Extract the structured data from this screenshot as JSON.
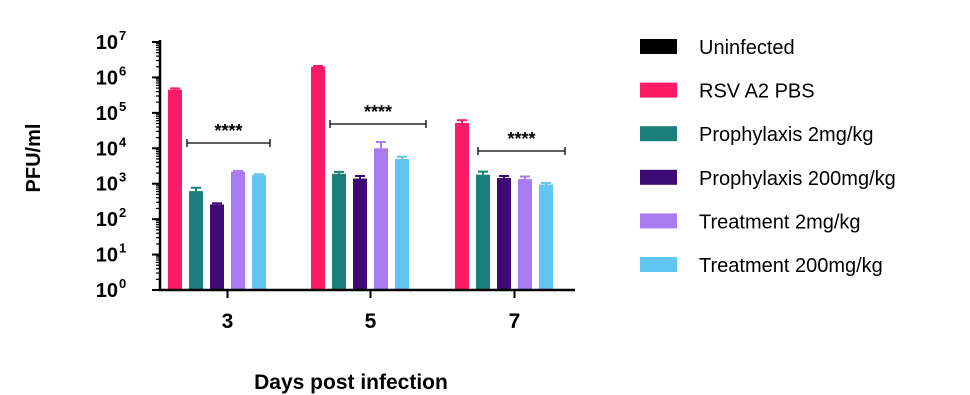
{
  "chart_data": {
    "type": "bar",
    "title": "",
    "xlabel": "Days post infection",
    "ylabel": "PFU/ml",
    "yscale": "log",
    "ylim": [
      1,
      10000000
    ],
    "y_tick_labels": [
      {
        "base": "10",
        "exp": "0"
      },
      {
        "base": "10",
        "exp": "1"
      },
      {
        "base": "10",
        "exp": "2"
      },
      {
        "base": "10",
        "exp": "3"
      },
      {
        "base": "10",
        "exp": "4"
      },
      {
        "base": "10",
        "exp": "5"
      },
      {
        "base": "10",
        "exp": "6"
      },
      {
        "base": "10",
        "exp": "7"
      }
    ],
    "categories": [
      "3",
      "5",
      "7"
    ],
    "legend_position": "right",
    "series": [
      {
        "name": "Uninfected",
        "color": "#000000",
        "values": [
          null,
          null,
          null
        ],
        "errors": [
          0,
          0,
          0
        ]
      },
      {
        "name": "RSV A2 PBS",
        "color": "#ff1a66",
        "values": [
          450000,
          2000000,
          52000
        ],
        "errors": [
          40000,
          100000,
          10000
        ]
      },
      {
        "name": "Prophylaxis 2mg/kg",
        "color": "#1a7f7a",
        "values": [
          620,
          1900,
          1800
        ],
        "errors": [
          150,
          250,
          400
        ]
      },
      {
        "name": "Prophylaxis 200mg/kg",
        "color": "#3d0a73",
        "values": [
          260,
          1400,
          1450
        ],
        "errors": [
          20,
          250,
          200
        ]
      },
      {
        "name": "Treatment 2mg/kg",
        "color": "#a97bf0",
        "values": [
          2200,
          10000,
          1350
        ],
        "errors": [
          100,
          5000,
          250
        ]
      },
      {
        "name": "Treatment 200mg/kg",
        "color": "#63c5f2",
        "values": [
          1750,
          5000,
          950
        ],
        "errors": [
          100,
          800,
          100
        ]
      }
    ],
    "annotations": [
      {
        "category": "3",
        "text": "****"
      },
      {
        "category": "5",
        "text": "****"
      },
      {
        "category": "7",
        "text": "****"
      }
    ]
  }
}
